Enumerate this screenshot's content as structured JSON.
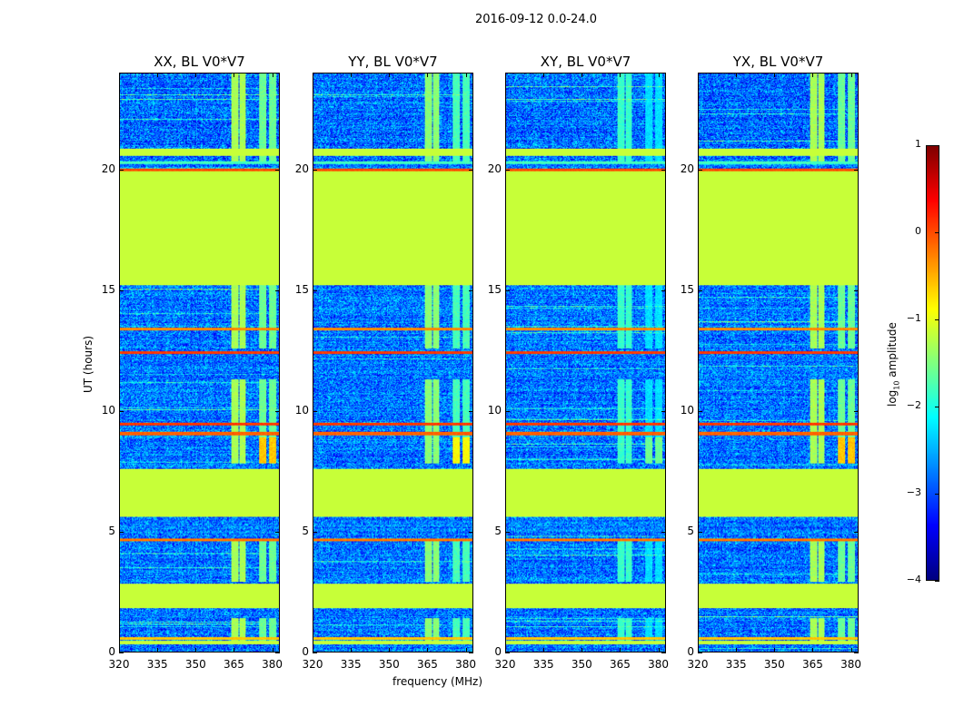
{
  "chart_data": {
    "type": "heatmap",
    "title": "2016-09-12 0.0-24.0",
    "xlabel": "frequency (MHz)",
    "ylabel": "UT (hours)",
    "xlim": [
      320,
      383
    ],
    "ylim": [
      0,
      24
    ],
    "xticks": [
      320,
      335,
      350,
      365,
      380
    ],
    "yticks": [
      0,
      5,
      10,
      15,
      20
    ],
    "colorbar": {
      "label": "log10 amplitude",
      "label_main": "log",
      "label_sub": "10",
      "label_rest": " amplitude",
      "range": [
        -4,
        1
      ],
      "ticks": [
        "1",
        "0",
        "−1",
        "−2",
        "−3",
        "−4"
      ],
      "tick_values": [
        1,
        0,
        -1,
        -2,
        -3,
        -4
      ],
      "colormap": "jet"
    },
    "panels": [
      {
        "title": "XX, BL V0*V7",
        "rfi_strength": 1.0,
        "seed": 11
      },
      {
        "title": "YY, BL V0*V7",
        "rfi_strength": 0.9,
        "seed": 23
      },
      {
        "title": "XY, BL V0*V7",
        "rfi_strength": 0.7,
        "seed": 37
      },
      {
        "title": "YX, BL V0*V7",
        "rfi_strength": 1.0,
        "seed": 51
      }
    ],
    "flagged_intervals_hours": [
      [
        0.3,
        0.45
      ],
      [
        1.8,
        2.8
      ],
      [
        5.6,
        7.6
      ],
      [
        15.2,
        20.0
      ],
      [
        20.6,
        20.9
      ]
    ],
    "flagged_value": -1.15,
    "noise_level": -2.8,
    "strong_lines": [
      {
        "t": 0.55,
        "v": -0.6
      },
      {
        "t": 4.65,
        "v": -0.2
      },
      {
        "t": 9.05,
        "v": -0.1
      },
      {
        "t": 9.45,
        "v": 0.1
      },
      {
        "t": 12.4,
        "v": 0.1
      },
      {
        "t": 13.4,
        "v": -0.3
      },
      {
        "t": 20.0,
        "v": 0.0
      },
      {
        "t": 20.3,
        "v": -1.8
      }
    ],
    "rfi_columns_mhz": [
      [
        364,
        367
      ],
      [
        367.5,
        370
      ],
      [
        375,
        378
      ],
      [
        379,
        382
      ]
    ],
    "rfi_active_hours": [
      [
        0.3,
        1.4
      ],
      [
        2.9,
        4.6
      ],
      [
        7.8,
        11.3
      ],
      [
        12.6,
        15.2
      ],
      [
        20.3,
        24
      ]
    ]
  }
}
